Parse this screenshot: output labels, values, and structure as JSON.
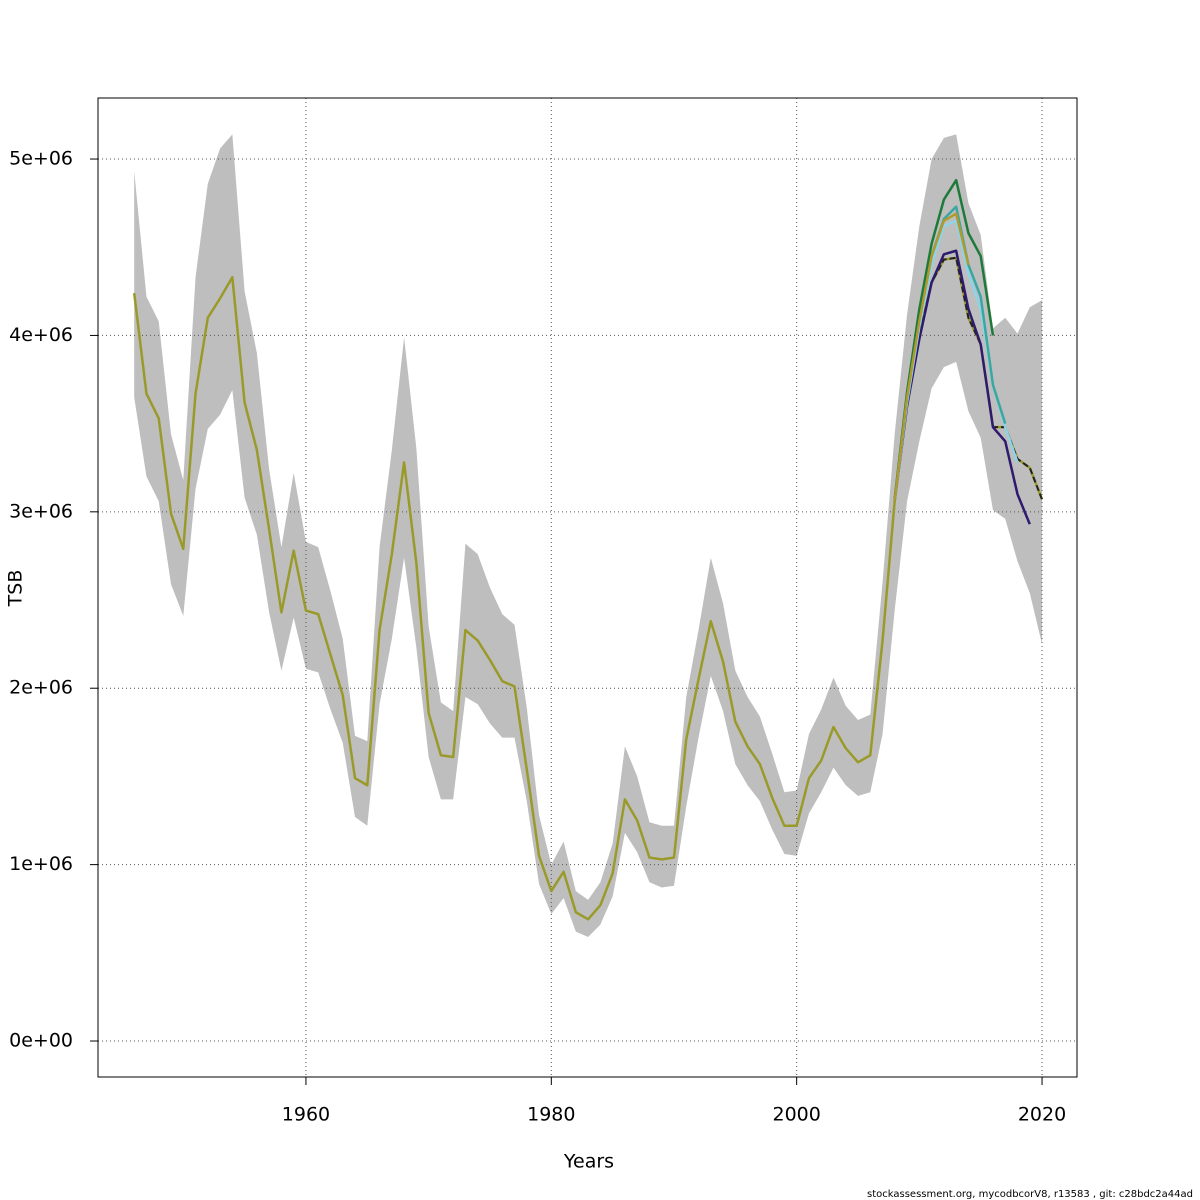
{
  "chart_data": {
    "type": "line",
    "xlabel": "Years",
    "ylabel": "TSB",
    "footer": "stockassessment.org, mycodbcorV8, r13583 , git: c28bdc2a44ad",
    "xlim": [
      1943.05,
      2022.85
    ],
    "ylim": [
      -204000,
      5346000
    ],
    "xticks": [
      1960,
      1980,
      2000,
      2020
    ],
    "yticks": [
      {
        "value": 0,
        "label": "0e+00"
      },
      {
        "value": 1000000,
        "label": "1e+06"
      },
      {
        "value": 2000000,
        "label": "2e+06"
      },
      {
        "value": 3000000,
        "label": "3e+06"
      },
      {
        "value": 4000000,
        "label": "4e+06"
      },
      {
        "value": 5000000,
        "label": "5e+06"
      }
    ],
    "grid": true,
    "x": [
      1946,
      1947,
      1948,
      1949,
      1950,
      1951,
      1952,
      1953,
      1954,
      1955,
      1956,
      1957,
      1958,
      1959,
      1960,
      1961,
      1962,
      1963,
      1964,
      1965,
      1966,
      1967,
      1968,
      1969,
      1970,
      1971,
      1972,
      1973,
      1974,
      1975,
      1976,
      1977,
      1978,
      1979,
      1980,
      1981,
      1982,
      1983,
      1984,
      1985,
      1986,
      1987,
      1988,
      1989,
      1990,
      1991,
      1992,
      1993,
      1994,
      1995,
      1996,
      1997,
      1998,
      1999,
      2000,
      2001,
      2002,
      2003,
      2004,
      2005,
      2006,
      2007,
      2008,
      2009,
      2010,
      2011,
      2012,
      2013,
      2014,
      2015,
      2016,
      2017,
      2018,
      2019,
      2020
    ],
    "band": {
      "color": "#bebebe",
      "upper": [
        4930000,
        4220000,
        4080000,
        3440000,
        3180000,
        4330000,
        4860000,
        5060000,
        5140000,
        4250000,
        3900000,
        3240000,
        2800000,
        3220000,
        2830000,
        2800000,
        2550000,
        2280000,
        1730000,
        1700000,
        2800000,
        3350000,
        3990000,
        3360000,
        2350000,
        1920000,
        1870000,
        2820000,
        2760000,
        2570000,
        2420000,
        2360000,
        1890000,
        1280000,
        1000000,
        1130000,
        850000,
        800000,
        900000,
        1120000,
        1670000,
        1500000,
        1240000,
        1220000,
        1220000,
        1950000,
        2330000,
        2740000,
        2480000,
        2100000,
        1950000,
        1840000,
        1630000,
        1410000,
        1420000,
        1740000,
        1880000,
        2060000,
        1900000,
        1820000,
        1850000,
        2600000,
        3450000,
        4120000,
        4620000,
        5000000,
        5120000,
        5140000,
        4750000,
        4570000,
        4040000,
        4100000,
        4010000,
        4160000,
        4200000
      ],
      "lower": [
        3650000,
        3200000,
        3060000,
        2590000,
        2410000,
        3130000,
        3470000,
        3550000,
        3690000,
        3080000,
        2870000,
        2430000,
        2100000,
        2400000,
        2110000,
        2090000,
        1880000,
        1690000,
        1270000,
        1220000,
        1910000,
        2280000,
        2740000,
        2230000,
        1610000,
        1370000,
        1370000,
        1950000,
        1910000,
        1800000,
        1720000,
        1720000,
        1360000,
        890000,
        720000,
        810000,
        620000,
        590000,
        660000,
        820000,
        1180000,
        1070000,
        900000,
        870000,
        880000,
        1330000,
        1720000,
        2070000,
        1870000,
        1570000,
        1450000,
        1360000,
        1200000,
        1060000,
        1050000,
        1290000,
        1410000,
        1550000,
        1450000,
        1390000,
        1410000,
        1740000,
        2450000,
        3060000,
        3400000,
        3700000,
        3820000,
        3850000,
        3570000,
        3420000,
        3010000,
        2960000,
        2720000,
        2540000,
        2250000
      ]
    },
    "series": [
      {
        "color": "#9a9a2a",
        "values": [
          4240000,
          3670000,
          3530000,
          2990000,
          2790000,
          3670000,
          4100000,
          4210000,
          4330000,
          3620000,
          3350000,
          2900000,
          2430000,
          2780000,
          2440000,
          2420000,
          2190000,
          1960000,
          1490000,
          1450000,
          2330000,
          2760000,
          3280000,
          2710000,
          1860000,
          1620000,
          1610000,
          2330000,
          2270000,
          2160000,
          2040000,
          2010000,
          1540000,
          1050000,
          850000,
          960000,
          730000,
          690000,
          770000,
          950000,
          1370000,
          1250000,
          1040000,
          1030000,
          1040000,
          1710000,
          2050000,
          2380000,
          2150000,
          1810000,
          1670000,
          1570000,
          1380000,
          1220000,
          1220000,
          1490000,
          1590000,
          1780000,
          1660000,
          1580000,
          1620000,
          2270000,
          3070000,
          3630000,
          4000000,
          4300000,
          4430000,
          4440000,
          4100000,
          3950000,
          3480000,
          3480000,
          3300000,
          3250000,
          3070000
        ],
        "dashed": true,
        "tail_color": "#222222",
        "tail_from": 2008
      },
      {
        "color": "#2e1a6e",
        "x": [
          2008,
          2009,
          2010,
          2011,
          2012,
          2013,
          2014,
          2015,
          2016,
          2017,
          2018,
          2019
        ],
        "values": [
          3070000,
          3600000,
          3980000,
          4300000,
          4460000,
          4480000,
          4150000,
          3950000,
          3480000,
          3400000,
          3100000,
          2930000
        ]
      },
      {
        "color": "#8fd3e8",
        "x": [
          2008,
          2009,
          2010,
          2011,
          2012,
          2013,
          2014,
          2015,
          2016,
          2017,
          2018
        ],
        "values": [
          3070000,
          3620000,
          4050000,
          4400000,
          4620000,
          4650000,
          4350000,
          4150000,
          3720000,
          3480000,
          3280000
        ]
      },
      {
        "color": "#3aa8a0",
        "x": [
          2008,
          2009,
          2010,
          2011,
          2012,
          2013,
          2014,
          2015,
          2016,
          2017
        ],
        "values": [
          3070000,
          3650000,
          4100000,
          4450000,
          4660000,
          4730000,
          4400000,
          4220000,
          3720000,
          3500000
        ]
      },
      {
        "color": "#1e7a3a",
        "x": [
          2008,
          2009,
          2010,
          2011,
          2012,
          2013,
          2014,
          2015,
          2016
        ],
        "values": [
          3080000,
          3680000,
          4150000,
          4520000,
          4770000,
          4880000,
          4580000,
          4450000,
          4000000
        ]
      },
      {
        "color": "#b09a30",
        "x": [
          2008,
          2009,
          2010,
          2011,
          2012,
          2013,
          2014
        ],
        "values": [
          3070000,
          3650000,
          4080000,
          4450000,
          4650000,
          4690000,
          4400000
        ]
      }
    ]
  }
}
